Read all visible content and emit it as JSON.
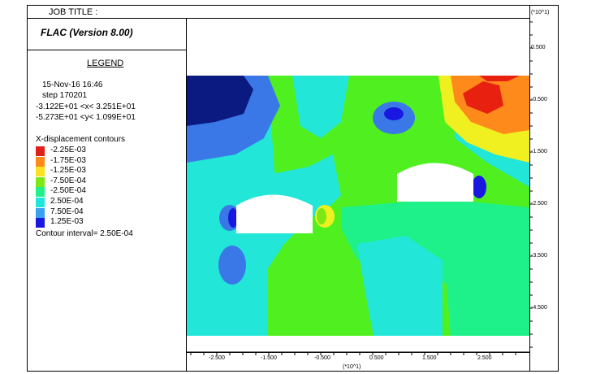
{
  "header": {
    "job_title_label": "JOB TITLE :",
    "app_title": "FLAC (Version 8.00)"
  },
  "legend": {
    "title": "LEGEND",
    "datetime": "15-Nov-16  16:46",
    "step": "step   170201",
    "x_range": "-3.122E+01 <x<  3.251E+01",
    "y_range": "-5.273E+01 <y<  1.099E+01",
    "contour_title": "X-displacement contours",
    "contour_interval": "Contour interval=  2.50E-04",
    "items": [
      {
        "label": "-2.25E-03",
        "color": "#e0201a"
      },
      {
        "label": "-1.75E-03",
        "color": "#ff8a1c"
      },
      {
        "label": "-1.25E-03",
        "color": "#ffe020"
      },
      {
        "label": "-7.50E-04",
        "color": "#7ee816"
      },
      {
        "label": "-2.50E-04",
        "color": "#22f088"
      },
      {
        "label": "2.50E-04",
        "color": "#1ee6dc"
      },
      {
        "label": "7.50E-04",
        "color": "#3aa0f0"
      },
      {
        "label": "1.25E-03",
        "color": "#1818e0"
      }
    ]
  },
  "axes": {
    "right_multiplier": "(*10^1)",
    "bottom_multiplier": "(*10^1)",
    "right_ticks": [
      "0.500",
      "-0.500",
      "-1.500",
      "-2.500",
      "-3.500",
      "-4.500"
    ],
    "bottom_ticks": [
      "-2.500",
      "-1.500",
      "-0.500",
      "0.500",
      "1.500",
      "2.500"
    ]
  },
  "colors": {
    "deep_blue": "#0a1a80",
    "mid_blue": "#3a78e8",
    "cyan": "#22e6d8",
    "aqua_green": "#1ef08a",
    "green": "#50f020",
    "yellow": "#f0f020",
    "orange": "#ff8a1c",
    "red": "#e82010",
    "opening": "#ffffff"
  }
}
